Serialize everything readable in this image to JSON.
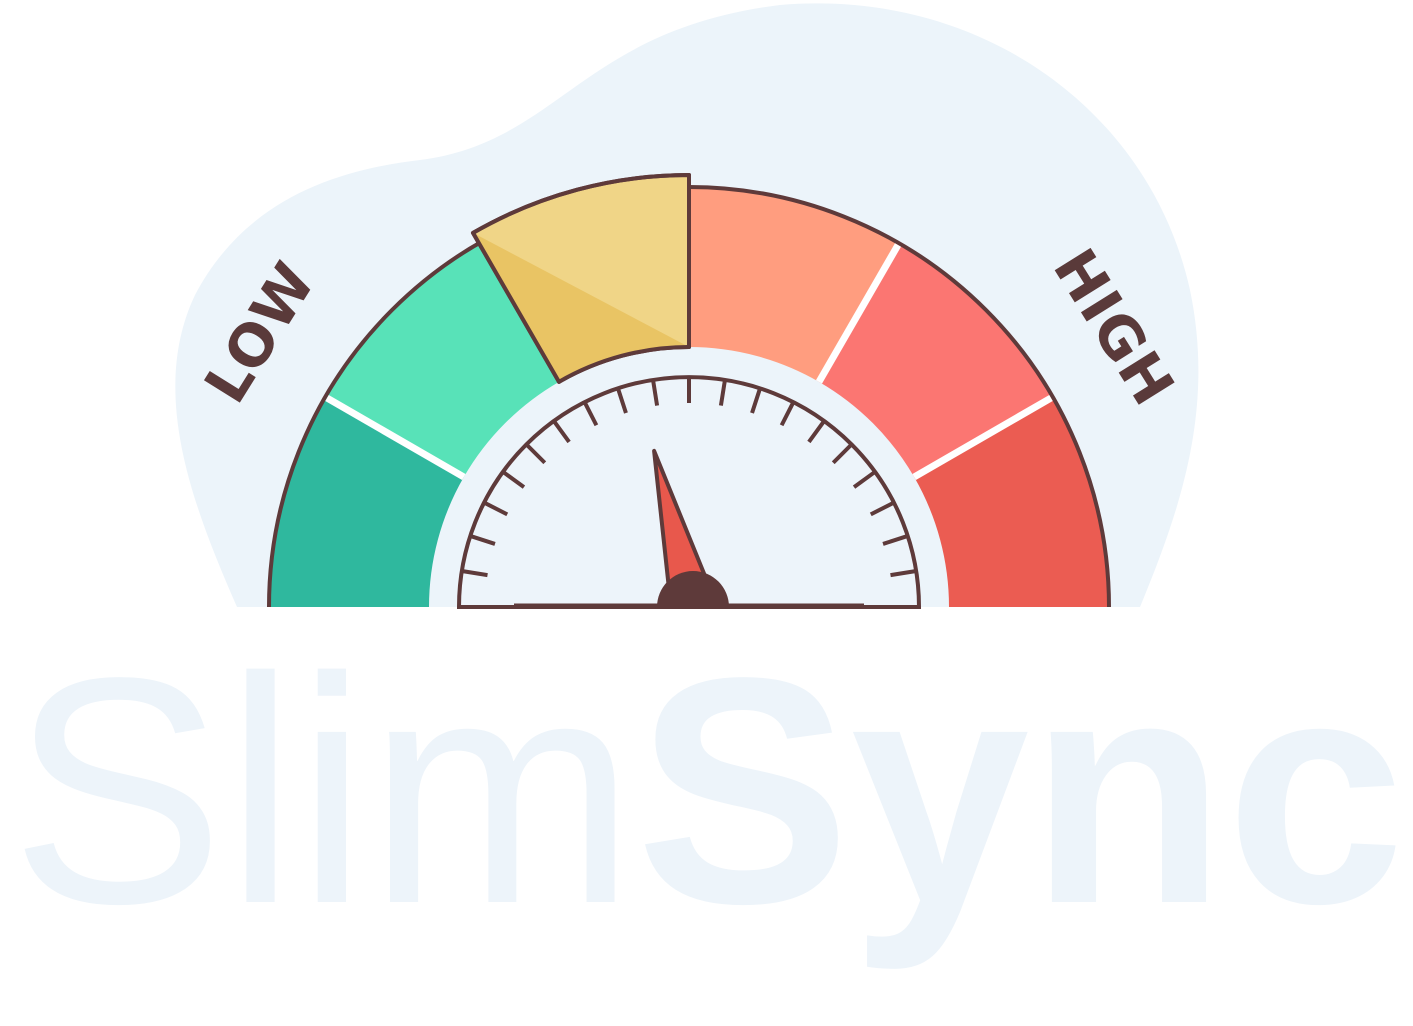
{
  "gauge": {
    "low_label": "LOW",
    "high_label": "HIGH",
    "needle_level": 0.43,
    "highlighted_segment": 3,
    "segments": [
      {
        "name": "green-dark",
        "color": "#2fb89e"
      },
      {
        "name": "green-light",
        "color": "#58e2b8"
      },
      {
        "name": "yellow",
        "color": "#f0d587"
      },
      {
        "name": "orange",
        "color": "#ff9d7f"
      },
      {
        "name": "red-light",
        "color": "#fb7672"
      },
      {
        "name": "red-dark",
        "color": "#eb5c52"
      }
    ],
    "outline_color": "#5e3a3a",
    "needle_color": "#e8584c",
    "background_blob_color": "#ecf4fa"
  },
  "wordmark": {
    "part_regular": "Slim",
    "part_bold": "Sync",
    "color": "#edf4fa"
  }
}
